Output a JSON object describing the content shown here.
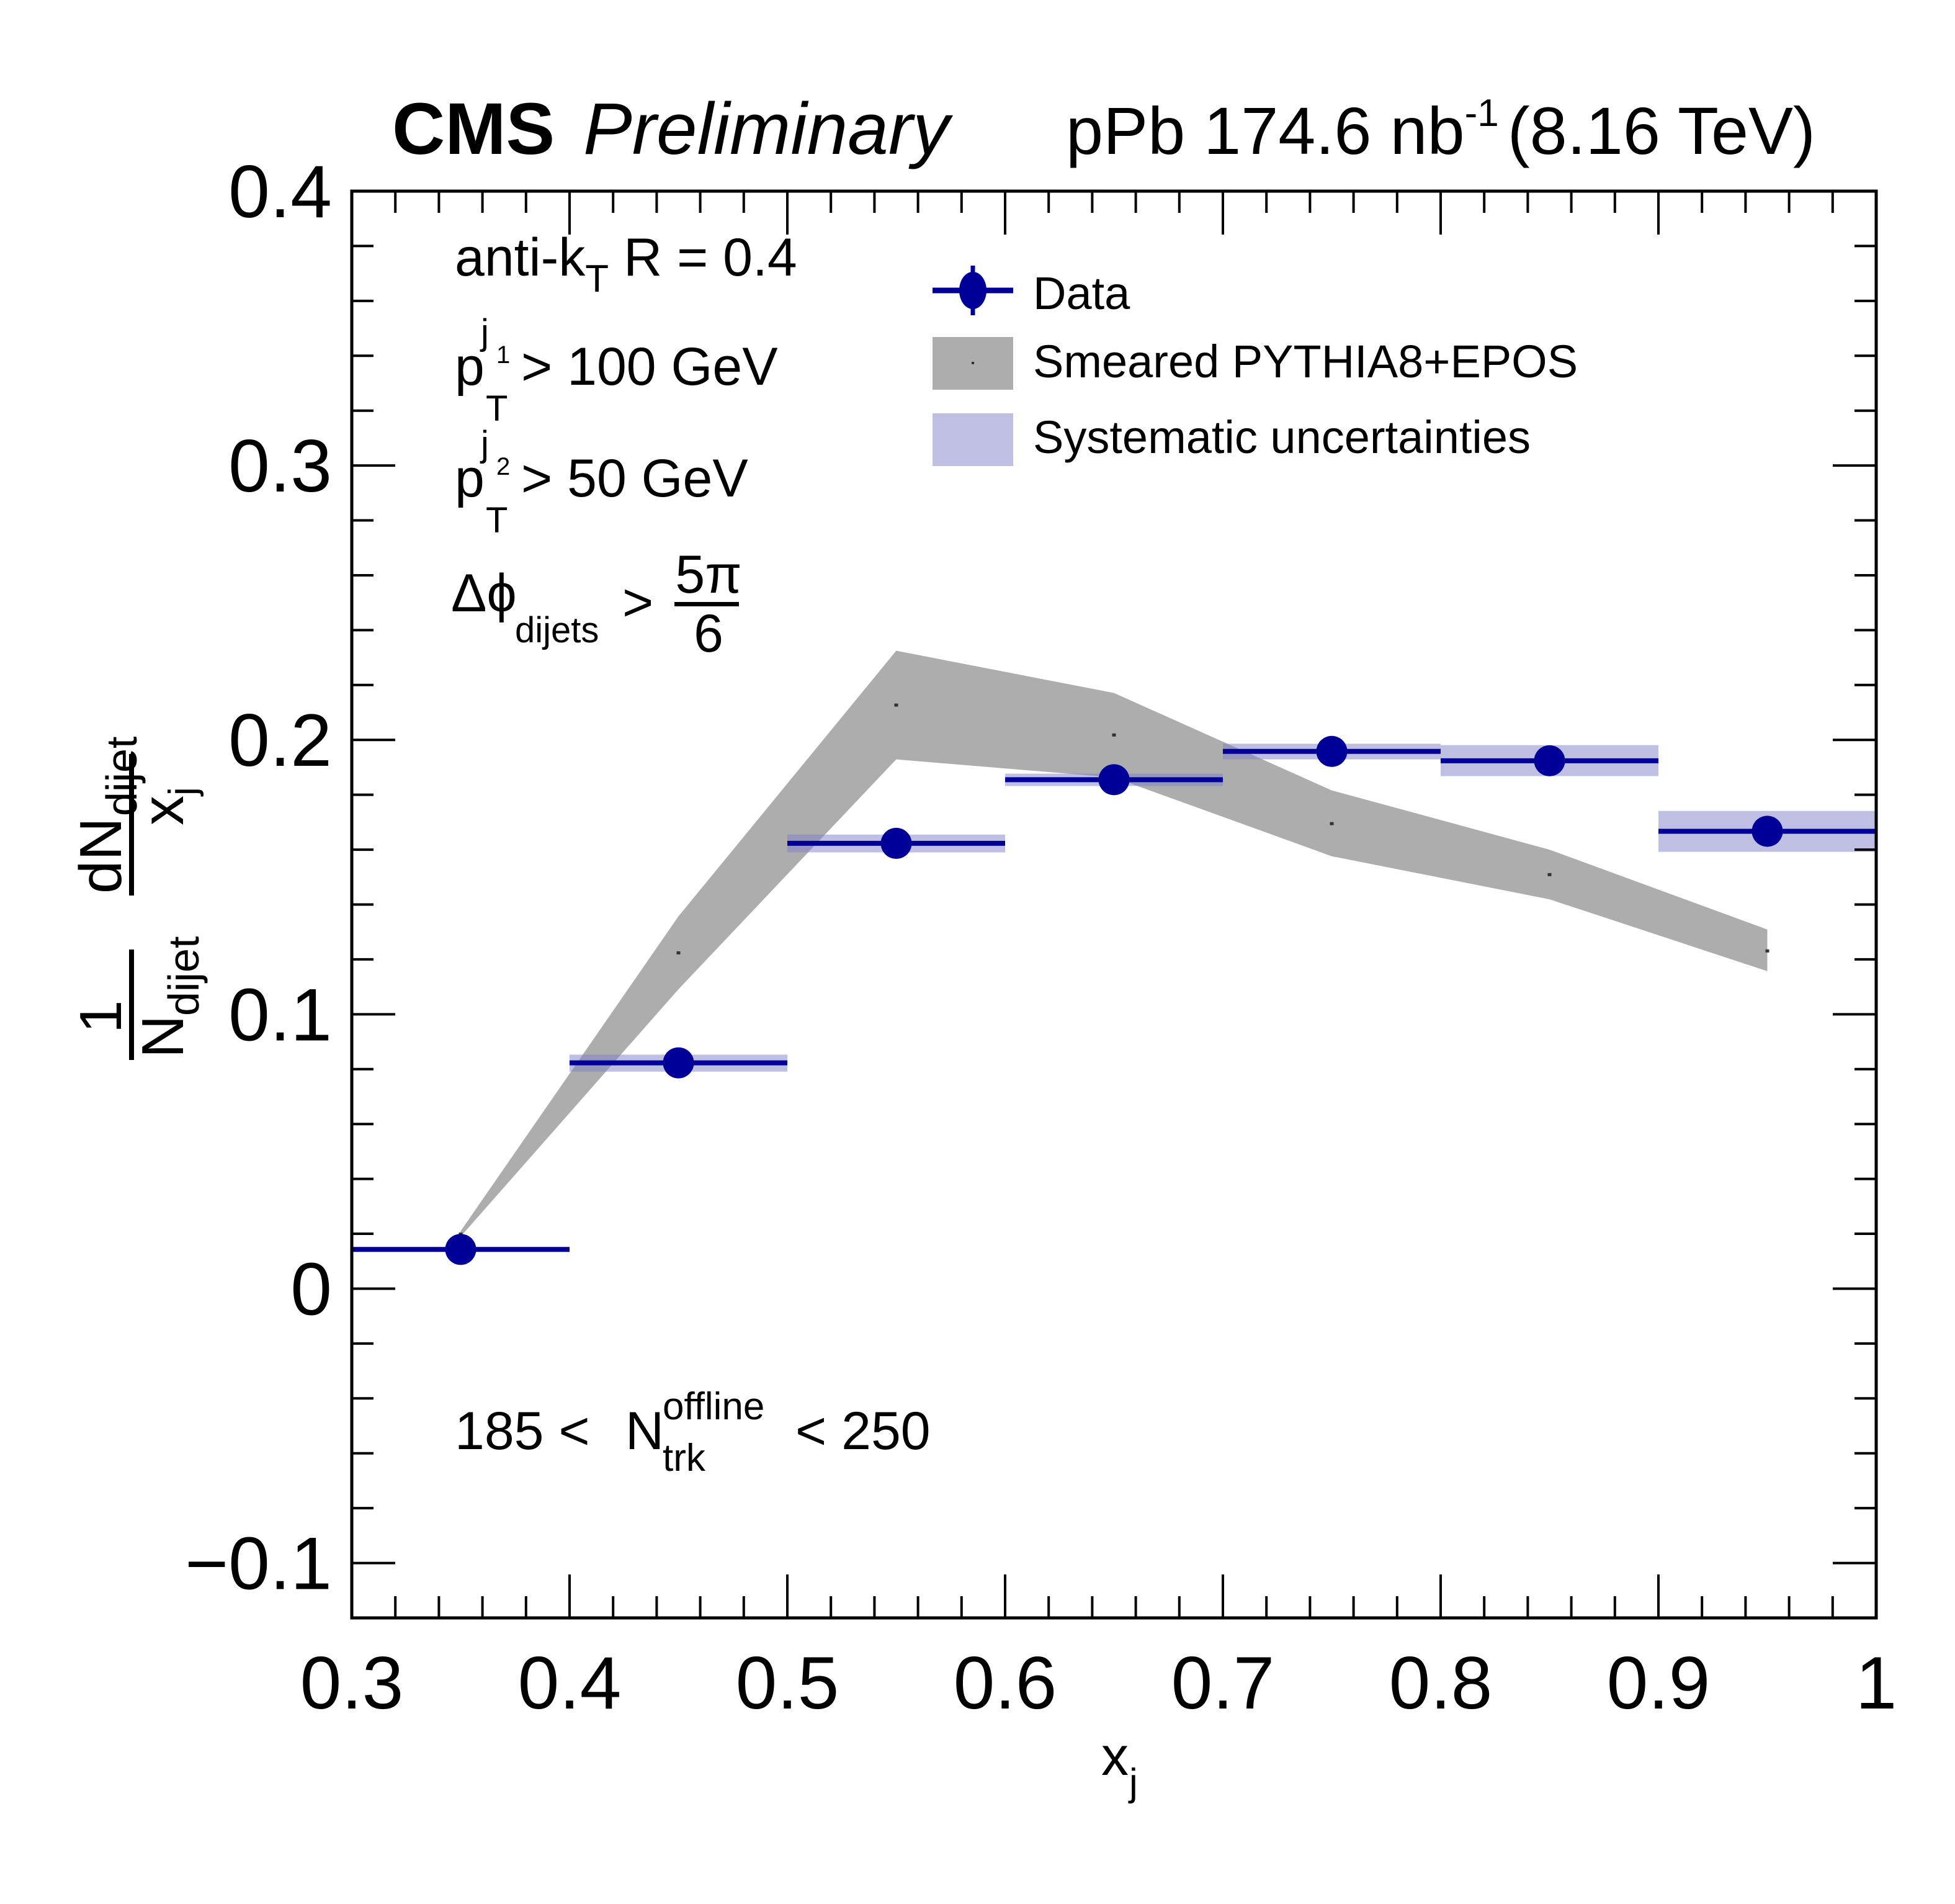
{
  "header": {
    "experiment": "CMS",
    "status": "Preliminary",
    "collision": "pPb 174.6 nb",
    "lumi_unit_exp": "-1",
    "energy": "(8.16 TeV)"
  },
  "annotations": {
    "algo_prefix": "anti-k",
    "algo_sub": "T",
    "algo_suffix": " R = 0.4",
    "pt1_base": "p",
    "pt1_sub": "T",
    "pt1_sup": "j",
    "pt1_sup_sub": "1",
    "pt1_cut": "> 100 GeV",
    "pt2_base": "p",
    "pt2_sub": "T",
    "pt2_sup": "j",
    "pt2_sup_sub": "2",
    "pt2_cut": "> 50 GeV",
    "dphi_base": "Δϕ",
    "dphi_sub": "dijets",
    "dphi_op": ">",
    "dphi_num": "5π",
    "dphi_den": "6",
    "mult_low": "185 <",
    "mult_base": "N",
    "mult_sup": "offline",
    "mult_sub": "trk",
    "mult_high": "< 250"
  },
  "legend": {
    "data_label": "Data",
    "model_label": "Smeared PYTHIA8+EPOS",
    "syst_label": "Systematic uncertainties"
  },
  "ytitle": {
    "one": "1",
    "n": "N",
    "n_sub": "dijet",
    "dn": "dN",
    "dn_sub": "dijet",
    "x": "x",
    "x_sub": "j"
  },
  "xtitle": {
    "x": "x",
    "x_sub": "j"
  },
  "colors": {
    "data": "#000099",
    "model_band": "#adadad",
    "model_center": "#333333",
    "syst": "#bfbfe3",
    "axis": "#000000"
  },
  "chart_data": {
    "type": "scatter",
    "title": "CMS Preliminary — pPb 174.6 nb^-1 (8.16 TeV)",
    "xlabel": "x_j",
    "ylabel": "1/N_dijet dN_dijet/x_j",
    "xlim": [
      0.3,
      1.0
    ],
    "ylim": [
      -0.12,
      0.4
    ],
    "x_major_step": 0.1,
    "x_minor_step": 0.02,
    "y_major_step": 0.1,
    "y_minor_step": 0.02,
    "x_tick_labels": [
      "0.3",
      "0.4",
      "0.5",
      "0.6",
      "0.7",
      "0.8",
      "0.9",
      "1"
    ],
    "y_tick_labels": [
      "−0.1",
      "0",
      "0.1",
      "0.2",
      "0.3",
      "0.4"
    ],
    "y_tick_values": [
      -0.1,
      0,
      0.1,
      0.2,
      0.3,
      0.4
    ],
    "legend_position": "top-right",
    "grid": false,
    "series": [
      {
        "name": "Data",
        "kind": "points",
        "x": [
          0.35,
          0.45,
          0.55,
          0.65,
          0.75,
          0.85,
          0.95
        ],
        "x_low": [
          0.3,
          0.4,
          0.5,
          0.6,
          0.7,
          0.8,
          0.9
        ],
        "x_high": [
          0.4,
          0.5,
          0.6,
          0.7,
          0.8,
          0.9,
          1.0
        ],
        "y": [
          0.0143,
          0.0823,
          0.1623,
          0.1855,
          0.1958,
          0.1924,
          0.1667
        ]
      },
      {
        "name": "Systematic uncertainties",
        "kind": "boxes",
        "x_low": [
          0.3,
          0.4,
          0.5,
          0.6,
          0.7,
          0.8,
          0.9
        ],
        "x_high": [
          0.4,
          0.5,
          0.6,
          0.7,
          0.8,
          0.9,
          1.0
        ],
        "y_low": [
          0.0143,
          0.0791,
          0.159,
          0.1832,
          0.1929,
          0.1868,
          0.1592
        ],
        "y_high": [
          0.0143,
          0.0853,
          0.1655,
          0.1877,
          0.1986,
          0.1981,
          0.1741
        ]
      },
      {
        "name": "Smeared PYTHIA8+EPOS",
        "kind": "band",
        "x": [
          0.35,
          0.45,
          0.55,
          0.65,
          0.75,
          0.85,
          0.95
        ],
        "y": [
          0.02,
          0.1225,
          0.2128,
          0.2019,
          0.1696,
          0.151,
          0.1232
        ],
        "y_low": [
          0.019,
          0.1091,
          0.1929,
          0.1863,
          0.1576,
          0.1419,
          0.1157
        ],
        "y_high": [
          0.021,
          0.1357,
          0.2325,
          0.2171,
          0.1816,
          0.16,
          0.1309
        ]
      }
    ]
  }
}
